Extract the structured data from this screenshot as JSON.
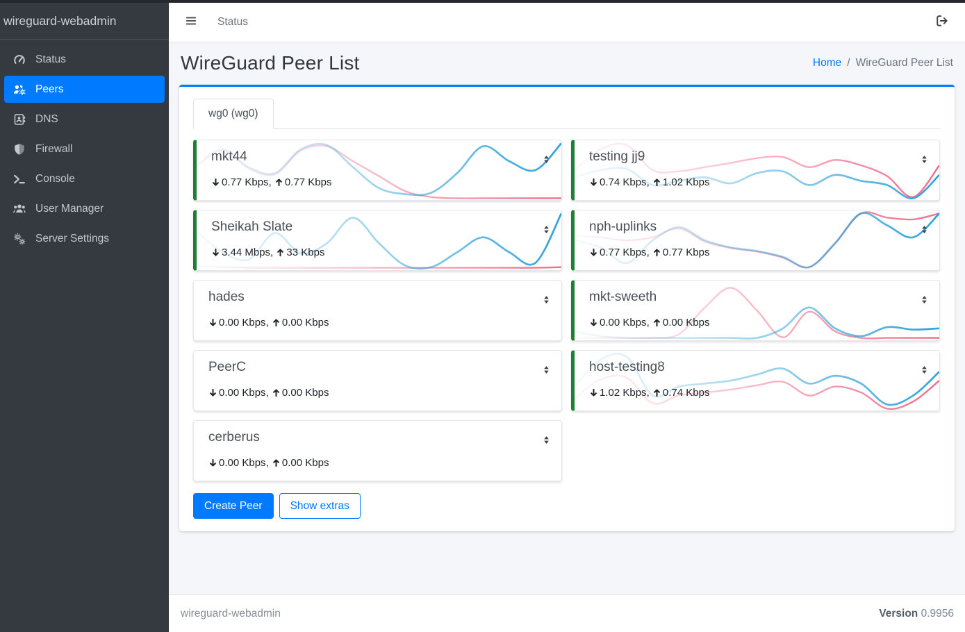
{
  "app": {
    "brand": "wireguard-webadmin"
  },
  "topbar": {
    "status_link": "Status"
  },
  "sidebar": {
    "items": [
      {
        "label": "Status",
        "icon": "gauge",
        "active": false
      },
      {
        "label": "Peers",
        "icon": "users-gear",
        "active": true
      },
      {
        "label": "DNS",
        "icon": "address-book",
        "active": false
      },
      {
        "label": "Firewall",
        "icon": "shield",
        "active": false
      },
      {
        "label": "Console",
        "icon": "terminal",
        "active": false
      },
      {
        "label": "User Manager",
        "icon": "users",
        "active": false
      },
      {
        "label": "Server Settings",
        "icon": "gears",
        "active": false
      }
    ]
  },
  "page": {
    "title": "WireGuard Peer List",
    "breadcrumb": {
      "home": "Home",
      "separator": "/",
      "current": "WireGuard Peer List"
    }
  },
  "tabs": [
    {
      "label": "wg0 (wg0)",
      "active": true
    }
  ],
  "labels": {
    "stats_separator": ", "
  },
  "actions": {
    "create_peer": "Create Peer",
    "show_extras": "Show extras"
  },
  "footer": {
    "version_label": "Version",
    "version": "0.9956"
  },
  "colors": {
    "primary": "#007bff",
    "online_border_green": "#1e7e34",
    "sparkline_download_blue": "#31a2dc",
    "sparkline_upload_pink": "#ee6b87",
    "sidebar_bg": "#343a40"
  },
  "peers": [
    {
      "name": "mkt44",
      "down": "0.77 Kbps",
      "up": "0.77 Kbps",
      "online": true,
      "sparkline": {
        "rx": [
          0.42,
          0.15,
          0.45,
          0.55,
          0.15,
          0.08,
          0.45,
          0.8,
          0.9,
          0.88,
          0.55,
          0.1,
          0.35,
          0.5,
          0.05
        ],
        "tx": [
          0.44,
          0.17,
          0.47,
          0.57,
          0.17,
          0.1,
          0.35,
          0.6,
          0.85,
          0.95,
          0.97,
          0.97,
          0.97,
          0.97,
          0.97
        ]
      }
    },
    {
      "name": "testing jj9",
      "down": "0.74 Kbps",
      "up": "1.02 Kbps",
      "online": true,
      "sparkline": {
        "rx": [
          0.62,
          0.5,
          0.48,
          0.75,
          0.68,
          0.62,
          0.72,
          0.55,
          0.52,
          0.75,
          0.58,
          0.68,
          0.75,
          0.97,
          0.58
        ],
        "tx": [
          0.5,
          0.15,
          0.08,
          0.5,
          0.52,
          0.45,
          0.38,
          0.3,
          0.28,
          0.45,
          0.33,
          0.42,
          0.6,
          0.95,
          0.42
        ]
      }
    },
    {
      "name": "Sheikah Slate",
      "down": "3.44 Mbps",
      "up": "33 Kbps",
      "online": true,
      "sparkline": {
        "rx": [
          0.35,
          0.7,
          0.82,
          0.38,
          0.72,
          0.55,
          0.12,
          0.55,
          0.92,
          0.95,
          0.7,
          0.45,
          0.7,
          0.88,
          0.05
        ],
        "tx": [
          0.93,
          0.95,
          0.96,
          0.96,
          0.96,
          0.96,
          0.96,
          0.96,
          0.96,
          0.96,
          0.96,
          0.96,
          0.96,
          0.96,
          0.95
        ]
      }
    },
    {
      "name": "nph-uplinks",
      "down": "0.77 Kbps",
      "up": "0.77 Kbps",
      "online": true,
      "sparkline": {
        "rx": [
          0.5,
          0.62,
          0.88,
          0.5,
          0.28,
          0.5,
          0.62,
          0.68,
          0.78,
          0.95,
          0.55,
          0.05,
          0.25,
          0.45,
          0.05
        ],
        "tx": [
          0.42,
          0.45,
          0.5,
          0.45,
          0.3,
          0.52,
          0.63,
          0.69,
          0.79,
          0.95,
          0.55,
          0.05,
          0.12,
          0.15,
          0.05
        ]
      }
    },
    {
      "name": "hades",
      "down": "0.00 Kbps",
      "up": "0.00 Kbps",
      "online": false,
      "sparkline": {
        "rx": [
          0.95,
          0.95,
          0.95,
          0.95,
          0.95,
          0.95,
          0.95,
          0.95,
          0.95,
          0.95,
          0.95,
          0.95,
          0.95,
          0.95,
          0.95
        ],
        "tx": [
          0.985,
          0.985,
          0.985,
          0.985,
          0.985,
          0.985,
          0.985,
          0.985,
          0.985,
          0.985,
          0.985,
          0.985,
          0.985,
          0.985,
          0.985
        ]
      }
    },
    {
      "name": "mkt-sweeth",
      "down": "0.00 Kbps",
      "up": "0.00 Kbps",
      "online": true,
      "sparkline": {
        "rx": [
          0.85,
          0.93,
          0.96,
          0.96,
          0.96,
          0.96,
          0.96,
          0.96,
          0.8,
          0.45,
          0.8,
          0.93,
          0.78,
          0.82,
          0.8
        ],
        "tx": [
          0.96,
          0.96,
          0.96,
          0.96,
          0.9,
          0.45,
          0.12,
          0.5,
          0.95,
          0.52,
          0.85,
          0.96,
          0.96,
          0.96,
          0.96
        ]
      }
    },
    {
      "name": "PeerC",
      "down": "0.00 Kbps",
      "up": "0.00 Kbps",
      "online": false,
      "sparkline": {
        "rx": [
          0.95,
          0.95,
          0.95,
          0.95,
          0.95,
          0.95,
          0.95,
          0.95,
          0.95,
          0.95,
          0.95,
          0.95,
          0.95,
          0.95,
          0.95
        ],
        "tx": [
          0.985,
          0.985,
          0.985,
          0.985,
          0.985,
          0.985,
          0.985,
          0.985,
          0.985,
          0.985,
          0.985,
          0.985,
          0.985,
          0.985,
          0.985
        ]
      }
    },
    {
      "name": "host-testing8",
      "down": "1.02 Kbps",
      "up": "0.74 Kbps",
      "online": true,
      "sparkline": {
        "rx": [
          0.6,
          0.15,
          0.1,
          0.75,
          0.6,
          0.55,
          0.5,
          0.4,
          0.3,
          0.55,
          0.42,
          0.55,
          0.9,
          0.75,
          0.35
        ],
        "tx": [
          0.8,
          0.48,
          0.45,
          0.88,
          0.75,
          0.7,
          0.65,
          0.58,
          0.52,
          0.75,
          0.6,
          0.7,
          0.97,
          0.85,
          0.5
        ]
      }
    },
    {
      "name": "cerberus",
      "down": "0.00 Kbps",
      "up": "0.00 Kbps",
      "online": false,
      "sparkline": {
        "rx": [
          0.95,
          0.95,
          0.95,
          0.95,
          0.95,
          0.95,
          0.95,
          0.95,
          0.95,
          0.95,
          0.95,
          0.95,
          0.95,
          0.95,
          0.95
        ],
        "tx": [
          0.985,
          0.985,
          0.985,
          0.985,
          0.985,
          0.985,
          0.985,
          0.985,
          0.985,
          0.985,
          0.985,
          0.985,
          0.985,
          0.985,
          0.985
        ]
      }
    }
  ]
}
